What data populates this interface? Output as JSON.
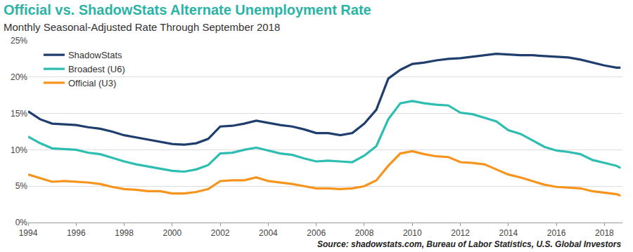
{
  "chart_data": {
    "type": "line",
    "title": "Official vs. ShadowStats Alternate Unemployment Rate",
    "subtitle": "Monthly Seasonal-Adjusted Rate Through September 2018",
    "annotations": [
      "Source: shadowstats.com, Bureau of Labor Statistics, U.S. Global Investors"
    ],
    "x": [
      1994,
      1994.5,
      1995,
      1995.5,
      1996,
      1996.5,
      1997,
      1997.5,
      1998,
      1998.5,
      1999,
      1999.5,
      2000,
      2000.5,
      2001,
      2001.5,
      2002,
      2002.5,
      2003,
      2003.5,
      2004,
      2004.5,
      2005,
      2005.5,
      2006,
      2006.5,
      2007,
      2007.5,
      2008,
      2008.5,
      2009,
      2009.5,
      2010,
      2010.5,
      2011,
      2011.5,
      2012,
      2012.5,
      2013,
      2013.5,
      2014,
      2014.5,
      2015,
      2015.5,
      2016,
      2016.5,
      2017,
      2017.5,
      2018,
      2018.5,
      2018.67
    ],
    "series": [
      {
        "name": "ShadowStats",
        "color": "#1f3d6d",
        "values": [
          15.3,
          14.2,
          13.6,
          13.5,
          13.4,
          13.1,
          12.9,
          12.5,
          12.0,
          11.7,
          11.4,
          11.1,
          10.8,
          10.7,
          10.9,
          11.5,
          13.2,
          13.3,
          13.6,
          14.0,
          13.7,
          13.4,
          13.2,
          12.8,
          12.3,
          12.3,
          12.0,
          12.3,
          13.6,
          15.5,
          19.8,
          21.0,
          21.8,
          22.0,
          22.3,
          22.5,
          22.6,
          22.8,
          23.0,
          23.2,
          23.1,
          23.0,
          23.0,
          22.9,
          22.8,
          22.7,
          22.4,
          22.0,
          21.6,
          21.3,
          21.3
        ]
      },
      {
        "name": "Broadest (U6)",
        "color": "#2dbdb1",
        "values": [
          11.8,
          10.9,
          10.2,
          10.1,
          10.0,
          9.6,
          9.4,
          8.9,
          8.4,
          8.0,
          7.7,
          7.4,
          7.1,
          7.0,
          7.3,
          7.9,
          9.5,
          9.6,
          10.0,
          10.3,
          9.9,
          9.5,
          9.3,
          8.8,
          8.4,
          8.5,
          8.4,
          8.3,
          9.2,
          10.5,
          14.2,
          16.4,
          16.7,
          16.4,
          16.2,
          16.1,
          15.1,
          14.9,
          14.4,
          13.9,
          12.7,
          12.2,
          11.3,
          10.4,
          9.9,
          9.7,
          9.4,
          8.6,
          8.2,
          7.8,
          7.5
        ]
      },
      {
        "name": "Official (U3)",
        "color": "#f7941d",
        "values": [
          6.6,
          6.1,
          5.6,
          5.7,
          5.6,
          5.5,
          5.3,
          4.9,
          4.6,
          4.5,
          4.3,
          4.3,
          4.0,
          4.0,
          4.2,
          4.6,
          5.7,
          5.8,
          5.8,
          6.2,
          5.7,
          5.5,
          5.3,
          5.0,
          4.7,
          4.7,
          4.6,
          4.7,
          5.0,
          5.8,
          7.8,
          9.5,
          9.8,
          9.4,
          9.1,
          9.0,
          8.3,
          8.2,
          8.0,
          7.3,
          6.6,
          6.2,
          5.7,
          5.2,
          4.9,
          4.8,
          4.7,
          4.3,
          4.1,
          3.9,
          3.7
        ]
      }
    ],
    "xlim": [
      1994,
      2018.75
    ],
    "xticks": [
      1994,
      1996,
      1998,
      2000,
      2002,
      2004,
      2006,
      2008,
      2010,
      2012,
      2014,
      2016,
      2018
    ],
    "ylim": [
      0,
      25
    ],
    "yticks": [
      {
        "value": 0,
        "label": "0%"
      },
      {
        "value": 5,
        "label": "5%"
      },
      {
        "value": 10,
        "label": "10%"
      },
      {
        "value": 15,
        "label": "15%"
      },
      {
        "value": 20,
        "label": "20%"
      },
      {
        "value": 25,
        "label": "25%"
      }
    ],
    "grid": true,
    "legend": "upper left"
  }
}
